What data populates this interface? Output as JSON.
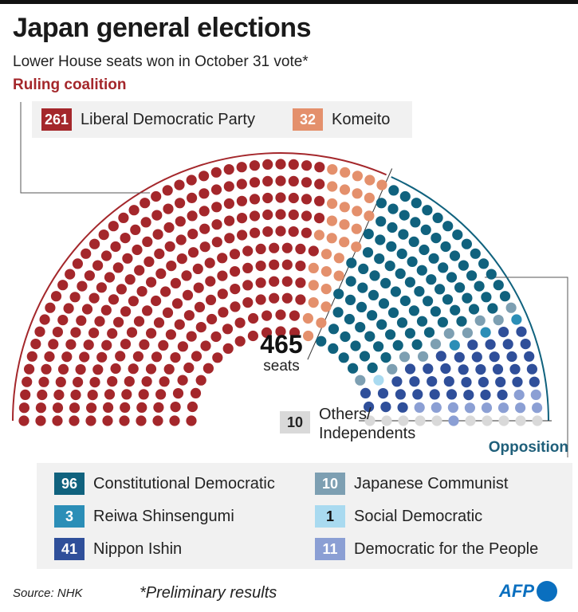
{
  "title": "Japan general elections",
  "subtitle": "Lower House seats won in October 31 vote*",
  "ruling_label": "Ruling coalition",
  "opposition_label": "Opposition",
  "center": {
    "number": "465",
    "label": "seats"
  },
  "source": "Source: NHK",
  "footnote": "*Preliminary results",
  "logo_text": "AFP",
  "others": {
    "count": "10",
    "label": "Others/ Independents",
    "label_line1": "Others/",
    "label_line2": "Independents",
    "color": "#d9d9d9"
  },
  "legend_ruling": [
    {
      "count": "261",
      "name": "Liberal Democratic Party",
      "color": "#a4272b"
    },
    {
      "count": "32",
      "name": "Komeito",
      "color": "#e4906c"
    }
  ],
  "legend_opposition": [
    {
      "count": "96",
      "name": "Constitutional Democratic",
      "color": "#10627e"
    },
    {
      "count": "10",
      "name": "Japanese Communist",
      "color": "#7d9fb2"
    },
    {
      "count": "3",
      "name": "Reiwa Shinsengumi",
      "color": "#2b8eb7"
    },
    {
      "count": "1",
      "name": "Social Democratic",
      "color": "#a9daf0"
    },
    {
      "count": "41",
      "name": "Nippon Ishin",
      "color": "#2f4f9a"
    },
    {
      "count": "11",
      "name": "Democratic for the People",
      "color": "#8b9fd4"
    }
  ],
  "chart_data": {
    "type": "parliament",
    "total_seats": 465,
    "series": [
      {
        "name": "Liberal Democratic Party",
        "values": [
          261
        ],
        "color": "#a4272b"
      },
      {
        "name": "Komeito",
        "values": [
          32
        ],
        "color": "#e4906c"
      },
      {
        "name": "Constitutional Democratic",
        "values": [
          96
        ],
        "color": "#10627e"
      },
      {
        "name": "Japanese Communist",
        "values": [
          10
        ],
        "color": "#7d9fb2"
      },
      {
        "name": "Reiwa Shinsengumi",
        "values": [
          3
        ],
        "color": "#2b8eb7"
      },
      {
        "name": "Social Democratic",
        "values": [
          1
        ],
        "color": "#a9daf0"
      },
      {
        "name": "Nippon Ishin",
        "values": [
          41
        ],
        "color": "#2f4f9a"
      },
      {
        "name": "Democratic for the People",
        "values": [
          11
        ],
        "color": "#8b9fd4"
      },
      {
        "name": "Others/Independents",
        "values": [
          10
        ],
        "color": "#d9d9d9"
      }
    ]
  }
}
